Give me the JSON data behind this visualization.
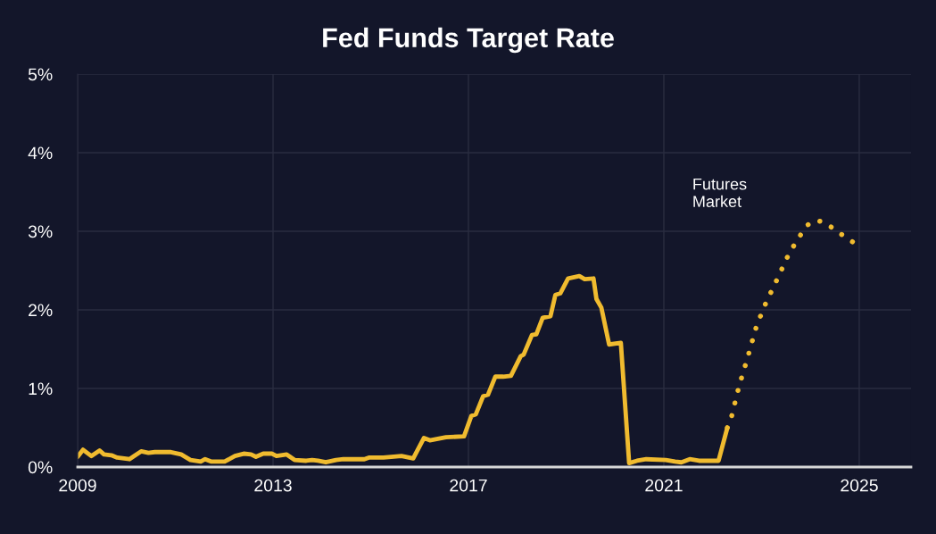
{
  "chart_data": {
    "type": "line",
    "title": "Fed Funds Target Rate",
    "xlim": [
      2009,
      2026.06
    ],
    "xticks": [
      2009,
      2013,
      2017,
      2021,
      2025
    ],
    "ylim": [
      0,
      5
    ],
    "yticks": [
      {
        "value": 0,
        "label": "0%"
      },
      {
        "value": 1,
        "label": "1%"
      },
      {
        "value": 2,
        "label": "2%"
      },
      {
        "value": 3,
        "label": "3%"
      },
      {
        "value": 4,
        "label": "4%"
      },
      {
        "value": 5,
        "label": "5%"
      }
    ],
    "grid": true,
    "legend": false,
    "marker": "none",
    "series": [
      {
        "color": "#f0bb2f",
        "line_style": "solid",
        "x": [
          2009.0,
          2009.11,
          2009.28,
          2009.45,
          2009.54,
          2009.69,
          2009.81,
          2010.06,
          2010.3,
          2010.45,
          2010.58,
          2010.91,
          2011.12,
          2011.31,
          2011.52,
          2011.61,
          2011.73,
          2012.01,
          2012.22,
          2012.4,
          2012.55,
          2012.65,
          2012.8,
          2012.98,
          2013.07,
          2013.28,
          2013.44,
          2013.68,
          2013.8,
          2013.92,
          2014.08,
          2014.29,
          2014.44,
          2014.87,
          2014.96,
          2015.26,
          2015.63,
          2015.87,
          2016.09,
          2016.21,
          2016.54,
          2016.91,
          2017.06,
          2017.15,
          2017.3,
          2017.4,
          2017.55,
          2017.71,
          2017.87,
          2018.07,
          2018.13,
          2018.3,
          2018.39,
          2018.52,
          2018.68,
          2018.78,
          2018.88,
          2019.04,
          2019.27,
          2019.38,
          2019.56,
          2019.62,
          2019.72,
          2019.88,
          2020.12,
          2020.29,
          2020.45,
          2020.64,
          2021.04,
          2021.23,
          2021.36,
          2021.53,
          2021.72,
          2022.12,
          2022.3
        ],
        "values": [
          0.13,
          0.22,
          0.14,
          0.21,
          0.16,
          0.15,
          0.12,
          0.1,
          0.2,
          0.18,
          0.19,
          0.19,
          0.16,
          0.09,
          0.07,
          0.1,
          0.07,
          0.07,
          0.14,
          0.17,
          0.16,
          0.13,
          0.17,
          0.17,
          0.14,
          0.16,
          0.09,
          0.08,
          0.09,
          0.08,
          0.06,
          0.09,
          0.1,
          0.1,
          0.12,
          0.12,
          0.14,
          0.11,
          0.37,
          0.34,
          0.38,
          0.39,
          0.65,
          0.67,
          0.9,
          0.92,
          1.15,
          1.15,
          1.16,
          1.41,
          1.43,
          1.68,
          1.69,
          1.9,
          1.92,
          2.19,
          2.21,
          2.4,
          2.43,
          2.39,
          2.4,
          2.14,
          2.03,
          1.56,
          1.58,
          0.05,
          0.08,
          0.1,
          0.09,
          0.07,
          0.06,
          0.1,
          0.08,
          0.08,
          0.5
        ]
      },
      {
        "name": "Futures\nMarket",
        "color": "#f0bb2f",
        "line_style": "dotted",
        "x": [
          2022.3,
          2022.37,
          2022.54,
          2022.7,
          2022.9,
          2023.09,
          2023.32,
          2023.55,
          2023.74,
          2023.94,
          2024.12,
          2024.3,
          2024.59,
          2024.9
        ],
        "values": [
          0.5,
          0.6,
          1.03,
          1.36,
          1.8,
          2.09,
          2.39,
          2.7,
          2.9,
          3.08,
          3.14,
          3.11,
          2.98,
          2.85
        ]
      }
    ]
  }
}
